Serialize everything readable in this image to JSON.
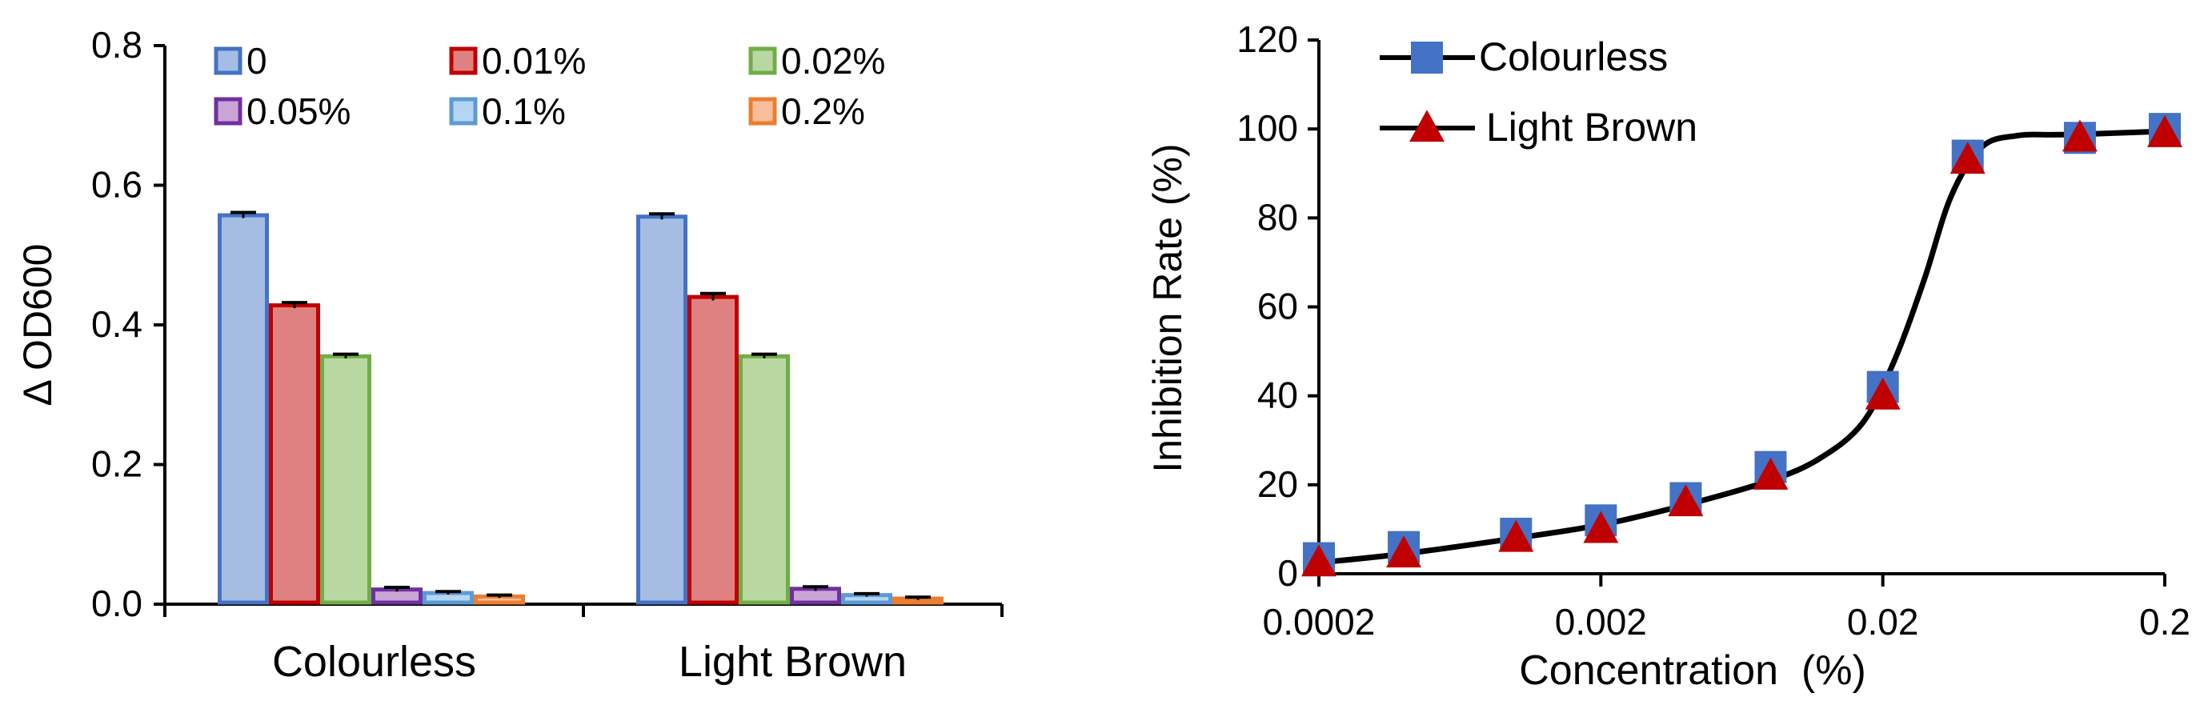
{
  "chart_data": [
    {
      "type": "bar",
      "ylabel": "Δ OD600",
      "ylim": [
        0,
        0.8
      ],
      "yticks": [
        "0.0",
        "0.2",
        "0.4",
        "0.6",
        "0.8"
      ],
      "categories": [
        "Colourless",
        "Light Brown"
      ],
      "legend_placement": "top",
      "series": [
        {
          "name": "0",
          "values": [
            0.557,
            0.555
          ],
          "errors": [
            0.004,
            0.004
          ],
          "fill": "#a6bde3",
          "stroke": "#4472c4"
        },
        {
          "name": "0.01%",
          "values": [
            0.428,
            0.44
          ],
          "errors": [
            0.004,
            0.005
          ],
          "fill": "#e08181",
          "stroke": "#c00000"
        },
        {
          "name": "0.02%",
          "values": [
            0.355,
            0.355
          ],
          "errors": [
            0.003,
            0.003
          ],
          "fill": "#b9d8a1",
          "stroke": "#70ad47"
        },
        {
          "name": "0.05%",
          "values": [
            0.021,
            0.022
          ],
          "errors": [
            0.003,
            0.003
          ],
          "fill": "#c9a5d6",
          "stroke": "#7030a0"
        },
        {
          "name": "0.1%",
          "values": [
            0.016,
            0.013
          ],
          "errors": [
            0.002,
            0.002
          ],
          "fill": "#b5d6f2",
          "stroke": "#5b9bd5"
        },
        {
          "name": "0.2%",
          "values": [
            0.011,
            0.008
          ],
          "errors": [
            0.002,
            0.002
          ],
          "fill": "#f6be9a",
          "stroke": "#ed7d31"
        }
      ]
    },
    {
      "type": "scatter",
      "xlabel": "Concentration  (%)",
      "ylabel": "Inhibition Rate (%)",
      "xscale": "log",
      "xlim": [
        0.0002,
        0.2
      ],
      "ylim": [
        0,
        120
      ],
      "xticks": [
        0.0002,
        0.002,
        0.02,
        0.2
      ],
      "xtick_labels": [
        "0.0002",
        "0.002",
        "0.02",
        "0.2"
      ],
      "yticks": [
        "0",
        "20",
        "40",
        "60",
        "80",
        "100",
        "120"
      ],
      "legend_placement": "top-left",
      "series": [
        {
          "name": "Colourless",
          "marker": "square",
          "color": "#4472c4",
          "x": [
            0.0002,
            0.0004,
            0.001,
            0.002,
            0.004,
            0.008,
            0.02,
            0.04,
            0.1,
            0.2
          ],
          "y": [
            3.5,
            6,
            9,
            12,
            17,
            24,
            42,
            94,
            98,
            100
          ]
        },
        {
          "name": "Light Brown",
          "marker": "triangle",
          "color": "#c00000",
          "x": [
            0.0002,
            0.0004,
            0.001,
            0.002,
            0.004,
            0.008,
            0.02,
            0.04,
            0.1,
            0.2
          ],
          "y": [
            2.5,
            4.5,
            8,
            10,
            16,
            22,
            40,
            93,
            98,
            99
          ]
        }
      ],
      "fit_curve": {
        "color": "#000000",
        "x": [
          0.0002,
          0.0004,
          0.001,
          0.002,
          0.004,
          0.008,
          0.012,
          0.017,
          0.022,
          0.028,
          0.035,
          0.045,
          0.06,
          0.08,
          0.1,
          0.2
        ],
        "y": [
          2.5,
          4.5,
          8,
          11,
          15.5,
          21,
          26,
          34,
          48,
          66,
          85,
          96,
          98.5,
          98.7,
          98.8,
          99.5
        ]
      }
    }
  ]
}
